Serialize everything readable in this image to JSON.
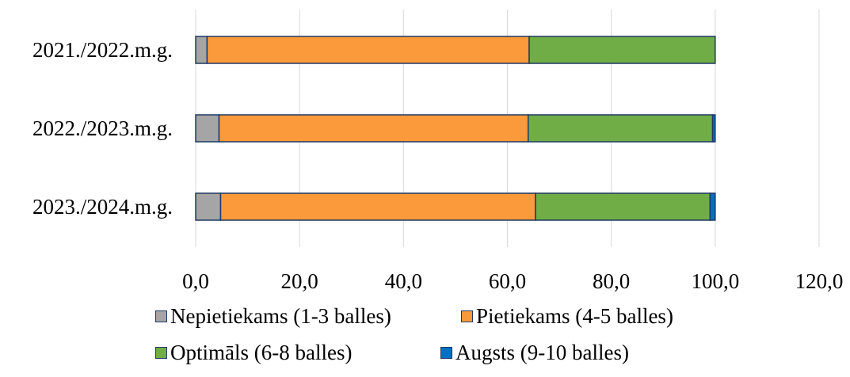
{
  "chart_data": {
    "type": "bar",
    "orientation": "horizontal",
    "stacked": true,
    "categories": [
      "2021./2022.m.g.",
      "2022./2023.m.g.",
      "2023./2024.m.g."
    ],
    "series": [
      {
        "name": "Nepietiekams (1-3 balles)",
        "color": "#a5a5a5",
        "values": [
          2.2,
          4.5,
          4.8
        ]
      },
      {
        "name": "Pietiekams (4-5 balles)",
        "color": "#fb9a3a",
        "values": [
          62.0,
          59.5,
          60.6
        ]
      },
      {
        "name": "Optimāls (6-8 balles)",
        "color": "#70ad47",
        "values": [
          35.8,
          35.5,
          33.6
        ]
      },
      {
        "name": "Augsts (9-10 balles)",
        "color": "#0070c0",
        "values": [
          0.0,
          0.5,
          1.0
        ]
      }
    ],
    "xlim": [
      0,
      120
    ],
    "x_ticks": [
      "0,0",
      "20,0",
      "40,0",
      "60,0",
      "80,0",
      "100,0",
      "120,0"
    ],
    "grid": "vertical",
    "legend_position": "bottom",
    "bar_outline_color": "#1f3864",
    "gridline_color": "#d9d9d9"
  }
}
